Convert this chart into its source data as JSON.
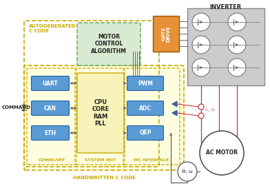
{
  "bg_color": "#ffffff",
  "title_inverter": "INVERTER",
  "title_autogenerated": "AUTOGENERATED\nC CODE",
  "title_handwritten": "HANDWRITTEN C CODE",
  "label_motor_control": "MOTOR\nCONTROL\nALGORITHM",
  "label_cpu": "CPU\nCORE\nRAM\nPLL",
  "label_uart": "UART",
  "label_can": "CAN",
  "label_eth": "ETH",
  "label_pwm": "PWM",
  "label_adc": "ADC",
  "label_qep": "QEP",
  "label_gate_drive": "GATE\nDRIVE",
  "label_ac_motor": "AC MOTOR",
  "label_command": "COMMAND",
  "label_comm_app": "COMM/APP",
  "label_system_init": "SYSTEM INIT",
  "label_mc_interface": "MC INTERFACE",
  "label_iv_iw": "iᵥ, iᵦ",
  "label_theta_omega": "Θ, ω",
  "color_blue_box": "#5b9bd5",
  "color_yellow_bg": "#fefde0",
  "color_yellow_border": "#c8a800",
  "color_green_bg": "#d9ead3",
  "color_green_border": "#6aa84f",
  "color_orange": "#e69138",
  "color_gray_inv": "#cccccc",
  "color_dark": "#404040",
  "color_red": "#cc3333",
  "color_blue_tri": "#3c5fa0",
  "color_arrow": "#333333"
}
